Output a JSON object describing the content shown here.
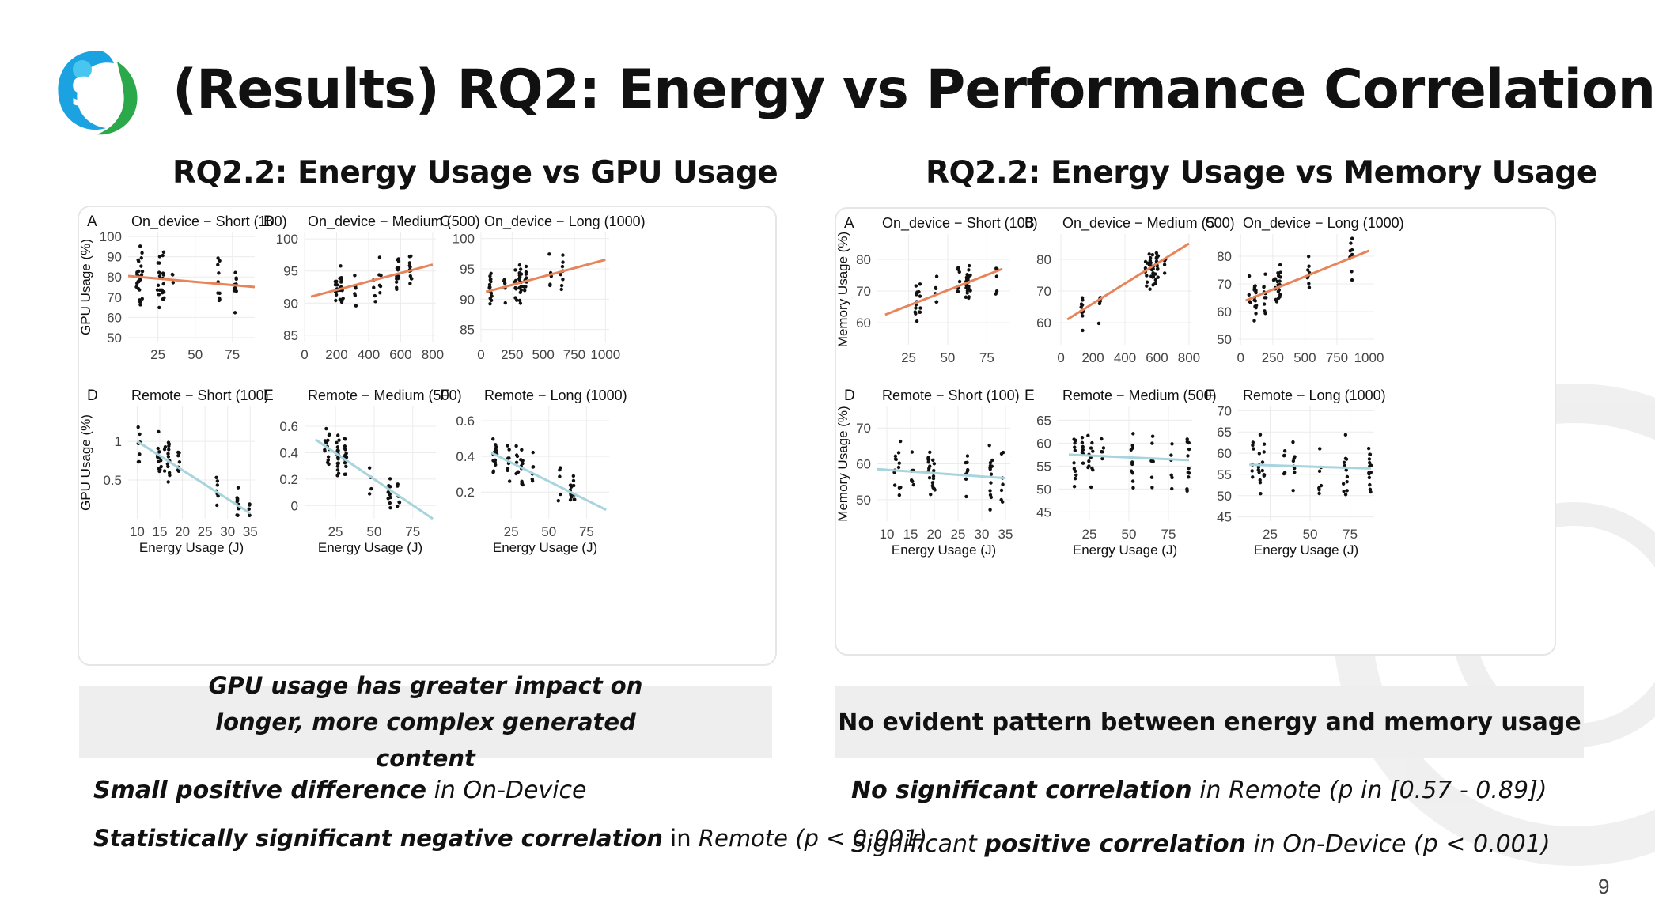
{
  "title": "(Results) RQ2: Energy vs Performance Correlation",
  "page_number": "9",
  "colors": {
    "fit_on_device": "#e8845a",
    "fit_remote": "#a8d4de",
    "points": "#111111",
    "callout_bg": "#eeeeee"
  },
  "left": {
    "heading": "RQ2.2: Energy Usage vs GPU Usage",
    "callout": "GPU usage has greater impact on longer, more complex generated content",
    "bullets": [
      {
        "bold": "Small positive difference",
        "rest": " in On-Device"
      },
      {
        "bold": "Statistically significant negative correlation",
        "rest": " in ",
        "italic": "Remote (p < 0.001)"
      }
    ]
  },
  "right": {
    "heading": "RQ2.2: Energy Usage vs Memory Usage",
    "callout": "No evident pattern between energy and memory usage",
    "bullets": [
      {
        "bold": "No significant correlation",
        "rest": " in Remote (p in [0.57 - 0.89])"
      },
      {
        "pre": "Significant ",
        "bold": "positive correlation",
        "rest": " in On-Device (p < 0.001)"
      }
    ]
  },
  "chart_data": [
    {
      "type": "scatter",
      "group": "gpu",
      "xlabel": "Energy Usage (J)",
      "ylabel": "GPU Usage (%)",
      "panels": [
        {
          "letter": "A",
          "title": "On_device − Short (100)",
          "xticks": [
            25,
            50,
            75
          ],
          "yticks": [
            50,
            60,
            70,
            80,
            90,
            100
          ],
          "xlim": [
            5,
            90
          ],
          "ylim": [
            48,
            102
          ],
          "fit": [
            [
              5,
              80.5
            ],
            [
              90,
              75
            ]
          ],
          "fit_color": "#e8845a",
          "seed": 11,
          "cloud": "flat"
        },
        {
          "letter": "B",
          "title": "On_device − Medium (500)",
          "xticks": [
            0,
            200,
            400,
            600,
            800
          ],
          "yticks": [
            85,
            90,
            95,
            100
          ],
          "xlim": [
            0,
            820
          ],
          "ylim": [
            84,
            101
          ],
          "fit": [
            [
              40,
              91
            ],
            [
              800,
              96
            ]
          ],
          "fit_color": "#e8845a",
          "seed": 23,
          "cloud": "pos"
        },
        {
          "letter": "C",
          "title": "On_device − Long (1000)",
          "xticks": [
            0,
            250,
            500,
            750,
            1000
          ],
          "yticks": [
            85,
            90,
            95,
            100
          ],
          "xlim": [
            0,
            1030
          ],
          "ylim": [
            83,
            101
          ],
          "fit": [
            [
              40,
              91.2
            ],
            [
              1000,
              96.5
            ]
          ],
          "fit_color": "#e8845a",
          "seed": 37,
          "cloud": "pos"
        },
        {
          "letter": "D",
          "title": "Remote − Short (100)",
          "xticks": [
            10,
            15,
            20,
            25,
            30,
            35
          ],
          "yticks": [
            0.5,
            1.0
          ],
          "xlim": [
            8,
            36
          ],
          "ylim": [
            0,
            1.45
          ],
          "fit": [
            [
              10,
              1.0
            ],
            [
              35,
              0.07
            ]
          ],
          "fit_color": "#a8d4de",
          "seed": 41,
          "cloud": "neg"
        },
        {
          "letter": "E",
          "title": "Remote − Medium (500)",
          "xticks": [
            25,
            50,
            75
          ],
          "yticks": [
            0.0,
            0.2,
            0.4,
            0.6
          ],
          "xlim": [
            5,
            90
          ],
          "ylim": [
            -0.1,
            0.75
          ],
          "fit": [
            [
              12,
              0.5
            ],
            [
              88,
              -0.1
            ]
          ],
          "fit_color": "#a8d4de",
          "seed": 53,
          "cloud": "neg"
        },
        {
          "letter": "F",
          "title": "Remote − Long (1000)",
          "xticks": [
            25,
            50,
            75
          ],
          "yticks": [
            0.2,
            0.4,
            0.6
          ],
          "xlim": [
            5,
            90
          ],
          "ylim": [
            0.05,
            0.68
          ],
          "fit": [
            [
              12,
              0.42
            ],
            [
              88,
              0.1
            ]
          ],
          "fit_color": "#a8d4de",
          "seed": 67,
          "cloud": "neg"
        }
      ]
    },
    {
      "type": "scatter",
      "group": "memory",
      "xlabel": "Energy Usage (J)",
      "ylabel": "Memory Usage (%)",
      "panels": [
        {
          "letter": "A",
          "title": "On_device − Short (100)",
          "xticks": [
            25,
            50,
            75
          ],
          "yticks": [
            60,
            70,
            80
          ],
          "xlim": [
            5,
            90
          ],
          "ylim": [
            53,
            88
          ],
          "fit": [
            [
              10,
              62.5
            ],
            [
              85,
              77
            ]
          ],
          "fit_color": "#e8845a",
          "seed": 71,
          "cloud": "pos"
        },
        {
          "letter": "B",
          "title": "On_device − Medium (500)",
          "xticks": [
            0,
            200,
            400,
            600,
            800
          ],
          "yticks": [
            60,
            70,
            80
          ],
          "xlim": [
            -20,
            820
          ],
          "ylim": [
            53,
            88
          ],
          "fit": [
            [
              40,
              61
            ],
            [
              800,
              85
            ]
          ],
          "fit_color": "#e8845a",
          "seed": 83,
          "cloud": "pos"
        },
        {
          "letter": "C",
          "title": "On_device − Long (1000)",
          "xticks": [
            0,
            250,
            500,
            750,
            1000
          ],
          "yticks": [
            50,
            60,
            70,
            80
          ],
          "xlim": [
            -20,
            1040
          ],
          "ylim": [
            48,
            88
          ],
          "fit": [
            [
              40,
              64
            ],
            [
              1000,
              82
            ]
          ],
          "fit_color": "#e8845a",
          "seed": 97,
          "cloud": "pos"
        },
        {
          "letter": "D",
          "title": "Remote − Short (100)",
          "xticks": [
            10,
            15,
            20,
            25,
            30,
            35
          ],
          "yticks": [
            50,
            60,
            70
          ],
          "xlim": [
            8,
            36
          ],
          "ylim": [
            44,
            76
          ],
          "fit": [
            [
              8,
              58.5
            ],
            [
              35,
              56
            ]
          ],
          "fit_color": "#a8d4de",
          "seed": 101,
          "cloud": "flat"
        },
        {
          "letter": "E",
          "title": "Remote − Medium (500)",
          "xticks": [
            25,
            50,
            75
          ],
          "yticks": [
            45,
            50,
            55,
            60,
            65
          ],
          "xlim": [
            5,
            90
          ],
          "ylim": [
            43,
            68
          ],
          "fit": [
            [
              12,
              57.5
            ],
            [
              88,
              56.3
            ]
          ],
          "fit_color": "#a8d4de",
          "seed": 113,
          "cloud": "flat"
        },
        {
          "letter": "F",
          "title": "Remote − Long (1000)",
          "xticks": [
            25,
            50,
            75
          ],
          "yticks": [
            45,
            50,
            55,
            60,
            65,
            70
          ],
          "xlim": [
            5,
            90
          ],
          "ylim": [
            44,
            71
          ],
          "fit": [
            [
              12,
              57.3
            ],
            [
              88,
              56.4
            ]
          ],
          "fit_color": "#a8d4de",
          "seed": 127,
          "cloud": "flat"
        }
      ]
    }
  ]
}
